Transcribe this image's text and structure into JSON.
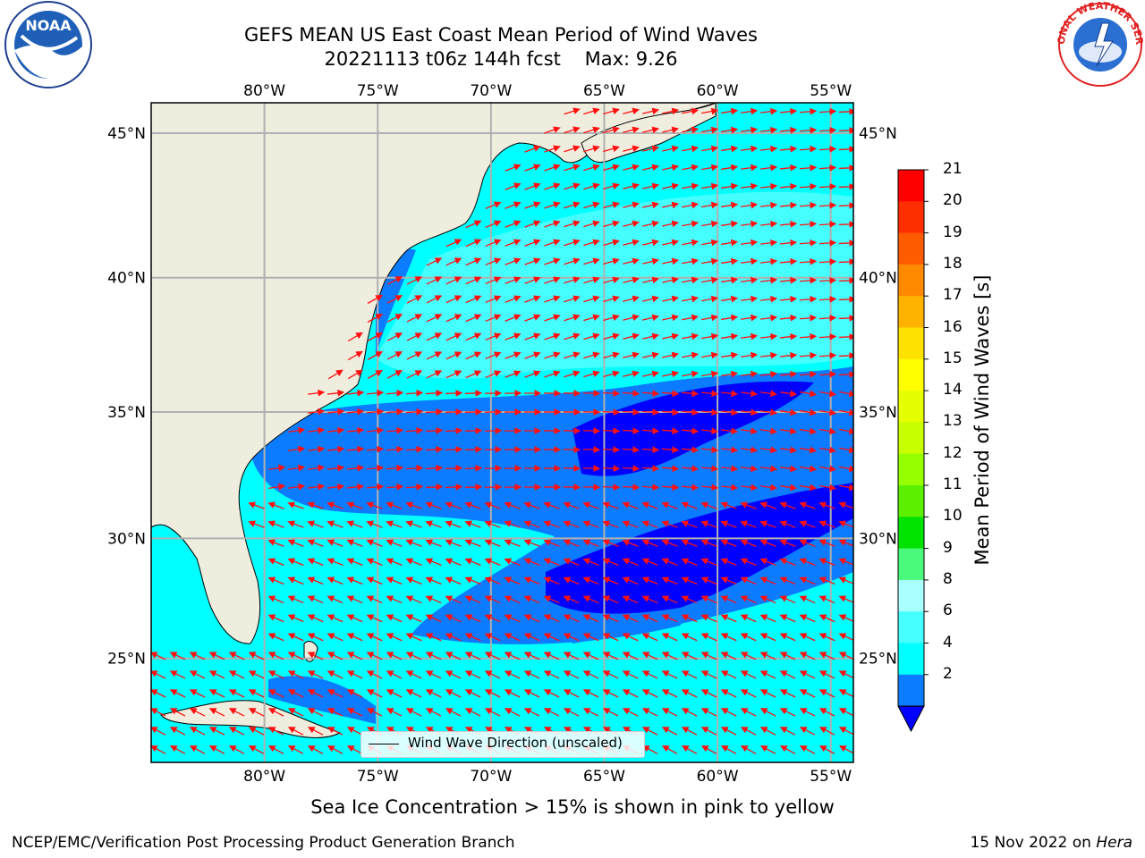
{
  "title": {
    "line1": "GEFS MEAN US East Coast Mean Period of Wind Waves",
    "line2": "20221113 t06z 144h fcst    Max: 9.26"
  },
  "map": {
    "lon_labels": [
      "80°W",
      "75°W",
      "70°W",
      "65°W",
      "60°W",
      "55°W"
    ],
    "lat_labels": [
      "45°N",
      "40°N",
      "35°N",
      "30°N",
      "25°N"
    ],
    "lon_range": [
      -85,
      -54
    ],
    "lat_range": [
      20.5,
      46
    ],
    "land_color": "#efedde",
    "ocean_levels": {
      "2-4": "#0b7bff",
      "4-6": "#00ffff",
      "6-8": "#45ffff",
      "8-9": "#8affff",
      "below-2": "#0000ff"
    }
  },
  "legend": {
    "label": "Wind Wave Direction (unscaled)"
  },
  "colorbar": {
    "label": "Mean Period of Wind Waves [s]",
    "ticks": [
      "21",
      "20",
      "19",
      "18",
      "17",
      "16",
      "15",
      "14",
      "13",
      "12",
      "11",
      "10",
      "9",
      "8",
      "6",
      "4",
      "2"
    ],
    "colors": [
      "#ff0000",
      "#ff2e00",
      "#ff5c00",
      "#ff8a00",
      "#ffb300",
      "#ffe100",
      "#ffff00",
      "#e6ff00",
      "#c8ff00",
      "#96ff00",
      "#5cf000",
      "#00e200",
      "#4afa7a",
      "#aaffff",
      "#45ffff",
      "#00ffff",
      "#0b7bff"
    ],
    "extend_color": "#0000ff"
  },
  "footer": {
    "subtitle": "Sea Ice Concentration > 15% is shown in pink to yellow",
    "credit": "NCEP/EMC/Verification Post Processing Product Generation Branch",
    "date": "15 Nov 2022 on",
    "machine": "Hera"
  },
  "logos": {
    "noaa": "NOAA",
    "nws": "NATIONAL WEATHER SERVICE"
  }
}
